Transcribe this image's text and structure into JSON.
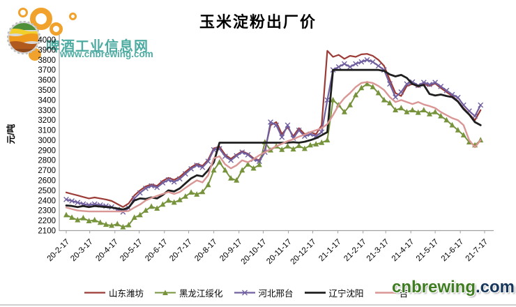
{
  "logo": {
    "site_name": "啤酒工业信息网",
    "site_url": "www.cnbrewing.com",
    "bubble_color": "#f0a22c",
    "text_color": "#3aa398"
  },
  "watermark": {
    "green_text": "cnbrewing",
    "dark_text": ".com",
    "green": "#3f7d21",
    "dark": "#16365c"
  },
  "chart_data": {
    "type": "line",
    "title": "玉米淀粉出厂价",
    "ylabel": "元/吨",
    "ylim": [
      2100,
      4000
    ],
    "ytick_step": 100,
    "grid": false,
    "legend_position": "bottom",
    "x_tick_labels": [
      "20-2-17",
      "20-3-17",
      "20-4-17",
      "20-5-17",
      "20-6-17",
      "20-7-17",
      "20-8-17",
      "20-9-17",
      "20-10-17",
      "20-11-17",
      "20-12-17",
      "21-1-17",
      "21-2-17",
      "21-3-17",
      "21-4-17",
      "21-5-17",
      "21-6-17",
      "21-7-17"
    ],
    "x_tick_weeks": [
      0,
      4.14,
      8.57,
      12.86,
      17.29,
      21.57,
      26.0,
      30.43,
      34.71,
      39.14,
      43.43,
      47.86,
      52.29,
      56.29,
      60.71,
      65.0,
      69.43,
      73.71
    ],
    "x_unit": "weekly points from 2020-02-17 to 2021-07-17",
    "series": [
      {
        "id": "shandong-weifang",
        "name": "山东潍坊",
        "color": "#9c3a36",
        "marker": "none",
        "width": 2.2,
        "values": [
          2480,
          2465,
          2450,
          2435,
          2420,
          2430,
          2420,
          2410,
          2395,
          2365,
          2335,
          2370,
          2450,
          2500,
          2540,
          2560,
          2545,
          2595,
          2625,
          2605,
          2635,
          2685,
          2730,
          2765,
          2745,
          2805,
          2920,
          2935,
          2855,
          2815,
          2855,
          2890,
          2865,
          2820,
          2800,
          2900,
          3150,
          3180,
          3060,
          3130,
          3040,
          3120,
          3060,
          3080,
          3060,
          3150,
          3890,
          3830,
          3850,
          3810,
          3840,
          3830,
          3855,
          3860,
          3840,
          3800,
          3740,
          3600,
          3470,
          3440,
          3540,
          3560,
          3530,
          3560,
          3540,
          3565,
          3520,
          3480,
          3440,
          3390,
          3320,
          3260,
          3200,
          3300
        ]
      },
      {
        "id": "heilongjiang-suihua",
        "name": "黑龙江绥化",
        "color": "#77933c",
        "marker": "triangle",
        "width": 2.0,
        "values": [
          2255,
          2230,
          2205,
          2225,
          2195,
          2205,
          2180,
          2160,
          2150,
          2165,
          2135,
          2155,
          2230,
          2255,
          2300,
          2340,
          2320,
          2360,
          2400,
          2380,
          2405,
          2440,
          2480,
          2460,
          2485,
          2555,
          2700,
          2780,
          2700,
          2620,
          2600,
          2700,
          2760,
          2720,
          2755,
          2980,
          2900,
          2940,
          2905,
          2940,
          2910,
          2945,
          2915,
          2950,
          2960,
          2975,
          3000,
          3400,
          3350,
          3280,
          3350,
          3450,
          3520,
          3560,
          3530,
          3470,
          3400,
          3370,
          3300,
          3320,
          3280,
          3300,
          3275,
          3300,
          3260,
          3280,
          3240,
          3200,
          3150,
          3100,
          3050,
          2980,
          2950,
          3000
        ]
      },
      {
        "id": "hebei-xingtai",
        "name": "河北邢台",
        "color": "#7160a0",
        "marker": "x",
        "width": 2.2,
        "values": [
          2410,
          2395,
          2380,
          2365,
          2355,
          2365,
          2355,
          2345,
          2335,
          2310,
          2285,
          2325,
          2420,
          2475,
          2520,
          2545,
          2530,
          2575,
          2605,
          2585,
          2615,
          2665,
          2715,
          2750,
          2730,
          2790,
          2905,
          2915,
          2840,
          2800,
          2845,
          2880,
          2855,
          2810,
          2790,
          2880,
          3180,
          3150,
          3030,
          3150,
          3020,
          3100,
          3040,
          3060,
          3040,
          3080,
          3400,
          3700,
          3730,
          3760,
          3730,
          3760,
          3780,
          3800,
          3780,
          3740,
          3700,
          3560,
          3430,
          3480,
          3560,
          3580,
          3545,
          3575,
          3555,
          3575,
          3535,
          3495,
          3455,
          3425,
          3350,
          3290,
          3240,
          3350
        ]
      },
      {
        "id": "liaoning-shenyang",
        "name": "辽宁沈阳",
        "color": "#1f1f1f",
        "marker": "none",
        "width": 2.8,
        "values": [
          2350,
          2345,
          2335,
          2345,
          2335,
          2345,
          2340,
          2335,
          2330,
          2320,
          2310,
          2330,
          2400,
          2420,
          2415,
          2430,
          2420,
          2455,
          2500,
          2490,
          2520,
          2570,
          2620,
          2650,
          2640,
          2700,
          2780,
          2975,
          2975,
          2975,
          2975,
          2975,
          2975,
          2975,
          2975,
          2975,
          2975,
          2975,
          2975,
          2975,
          2980,
          2975,
          2985,
          3000,
          3020,
          3050,
          3080,
          3700,
          3700,
          3700,
          3700,
          3700,
          3700,
          3700,
          3700,
          3700,
          3690,
          3655,
          3635,
          3650,
          3620,
          3560,
          3540,
          3550,
          3460,
          3445,
          3455,
          3440,
          3430,
          3385,
          3310,
          3255,
          3180,
          3150
        ]
      },
      {
        "id": "jilin",
        "name": "吉",
        "color": "#d99694",
        "marker": "none",
        "width": 2.4,
        "values": [
          2330,
          2315,
          2300,
          2295,
          2290,
          2290,
          2290,
          2290,
          2290,
          2290,
          2290,
          2295,
          2330,
          2360,
          2400,
          2425,
          2445,
          2465,
          2485,
          2465,
          2485,
          2525,
          2565,
          2600,
          2580,
          2650,
          2820,
          2840,
          2760,
          2720,
          2750,
          2800,
          2780,
          2810,
          2850,
          2880,
          2910,
          2940,
          2965,
          2990,
          3010,
          3035,
          3055,
          3080,
          3100,
          3120,
          3160,
          3250,
          3350,
          3420,
          3470,
          3530,
          3570,
          3580,
          3570,
          3540,
          3500,
          3430,
          3380,
          3400,
          3380,
          3360,
          3380,
          3355,
          3340,
          3320,
          3280,
          3250,
          3220,
          3200,
          3150,
          3000,
          2930,
          3000
        ]
      }
    ]
  }
}
